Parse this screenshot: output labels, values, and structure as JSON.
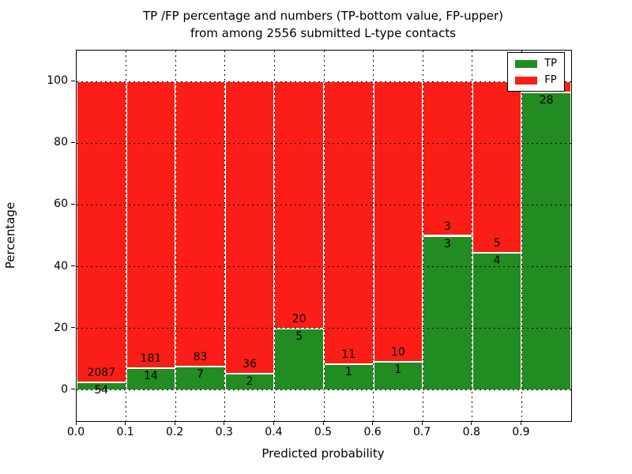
{
  "title": {
    "line1": "TP /FP percentage and numbers (TP-bottom value, FP-upper)",
    "line2": "from among 2556 submitted L-type contacts"
  },
  "axes": {
    "xlabel": "Predicted probability",
    "ylabel": "Percentage"
  },
  "legend": {
    "items": [
      {
        "label": "TP",
        "color": "#228b22"
      },
      {
        "label": "FP",
        "color": "#fa1e16"
      }
    ]
  },
  "chart_data": {
    "type": "bar",
    "stacked": true,
    "title": "TP /FP percentage and numbers (TP-bottom value, FP-upper) from among 2556 submitted L-type contacts",
    "xlabel": "Predicted probability",
    "ylabel": "Percentage",
    "xlim": [
      0,
      1
    ],
    "ylim": [
      -10,
      110
    ],
    "grid": true,
    "legend_position": "upper right",
    "x_tick_values": [
      0.0,
      0.1,
      0.2,
      0.3,
      0.4,
      0.5,
      0.6,
      0.7,
      0.8,
      0.9
    ],
    "x_tick_labels": [
      "0.0",
      "0.1",
      "0.2",
      "0.3",
      "0.4",
      "0.5",
      "0.6",
      "0.7",
      "0.8",
      "0.9"
    ],
    "y_tick_values": [
      0,
      20,
      40,
      60,
      80,
      100
    ],
    "y_tick_labels": [
      "0",
      "20",
      "40",
      "60",
      "80",
      "100"
    ],
    "series": [
      {
        "name": "TP",
        "color": "#228b22"
      },
      {
        "name": "FP",
        "color": "#fa1e16"
      }
    ],
    "total_contacts": 2556,
    "bins": [
      {
        "range": [
          0.0,
          0.1
        ],
        "tp_count": 54,
        "fp_count": 2087,
        "tp_pct": 2.52,
        "fp_pct": 97.48
      },
      {
        "range": [
          0.1,
          0.2
        ],
        "tp_count": 14,
        "fp_count": 181,
        "tp_pct": 7.18,
        "fp_pct": 92.82
      },
      {
        "range": [
          0.2,
          0.3
        ],
        "tp_count": 7,
        "fp_count": 83,
        "tp_pct": 7.78,
        "fp_pct": 92.22
      },
      {
        "range": [
          0.3,
          0.4
        ],
        "tp_count": 2,
        "fp_count": 36,
        "tp_pct": 5.26,
        "fp_pct": 94.74
      },
      {
        "range": [
          0.4,
          0.5
        ],
        "tp_count": 5,
        "fp_count": 20,
        "tp_pct": 20.0,
        "fp_pct": 80.0
      },
      {
        "range": [
          0.5,
          0.6
        ],
        "tp_count": 1,
        "fp_count": 11,
        "tp_pct": 8.33,
        "fp_pct": 91.67
      },
      {
        "range": [
          0.6,
          0.7
        ],
        "tp_count": 1,
        "fp_count": 10,
        "tp_pct": 9.09,
        "fp_pct": 90.91
      },
      {
        "range": [
          0.7,
          0.8
        ],
        "tp_count": 3,
        "fp_count": 3,
        "tp_pct": 50.0,
        "fp_pct": 50.0
      },
      {
        "range": [
          0.8,
          0.9
        ],
        "tp_count": 4,
        "fp_count": 5,
        "tp_pct": 44.44,
        "fp_pct": 55.56
      },
      {
        "range": [
          0.9,
          1.0
        ],
        "tp_count": 28,
        "fp_count": null,
        "tp_pct": 96.55,
        "fp_pct": 3.45
      }
    ]
  }
}
